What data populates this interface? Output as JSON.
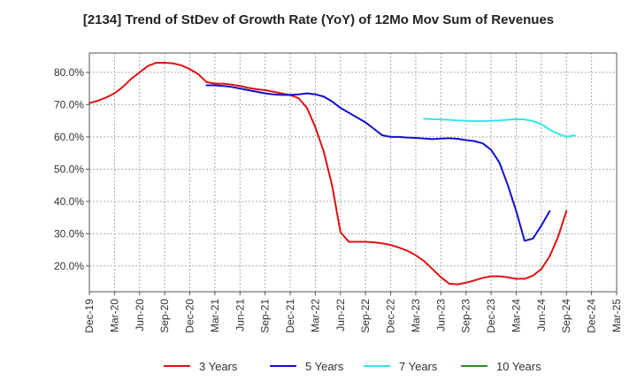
{
  "chart_data": {
    "type": "line",
    "title": "[2134]  Trend of StDev of Growth Rate (YoY) of 12Mo Mov Sum of Revenues",
    "xlabel": "",
    "ylabel": "",
    "ylim": [
      12.0,
      86.0
    ],
    "y_ticks": [
      20,
      30,
      40,
      50,
      60,
      70,
      80
    ],
    "y_tick_labels": [
      "20.0%",
      "30.0%",
      "40.0%",
      "50.0%",
      "60.0%",
      "70.0%",
      "80.0%"
    ],
    "x_range": [
      0,
      63
    ],
    "x_ticks": [
      0,
      3,
      6,
      9,
      12,
      15,
      18,
      21,
      24,
      27,
      30,
      33,
      36,
      39,
      42,
      45,
      48,
      51,
      54,
      57,
      60,
      63
    ],
    "x_tick_labels": [
      "Dec-19",
      "Mar-20",
      "Jun-20",
      "Sep-20",
      "Dec-20",
      "Mar-21",
      "Jun-21",
      "Sep-21",
      "Dec-21",
      "Mar-22",
      "Jun-22",
      "Sep-22",
      "Dec-22",
      "Mar-23",
      "Jun-23",
      "Sep-23",
      "Dec-23",
      "Mar-24",
      "Jun-24",
      "Sep-24",
      "Dec-24",
      "Mar-25"
    ],
    "grid": true,
    "legend_position": "bottom",
    "series": [
      {
        "name": "3 Years",
        "color": "#dd1111",
        "start_index": 0,
        "values": [
          70.5,
          71.2,
          72.2,
          73.5,
          75.5,
          78.0,
          80.0,
          82.0,
          83.0,
          83.0,
          82.8,
          82.2,
          81.0,
          79.5,
          77.0,
          76.5,
          76.5,
          76.2,
          75.8,
          75.2,
          74.8,
          74.5,
          74.0,
          73.5,
          73.0,
          72.0,
          69.0,
          63.0,
          55.5,
          45.0,
          30.5,
          27.5,
          27.5,
          27.5,
          27.3,
          27.0,
          26.5,
          25.7,
          24.7,
          23.3,
          21.5,
          19.0,
          16.5,
          14.5,
          14.3,
          14.8,
          15.5,
          16.3,
          16.8,
          16.8,
          16.5,
          16.0,
          16.0,
          17.0,
          19.0,
          23.0,
          29.0,
          37.0
        ]
      },
      {
        "name": "5 Years",
        "color": "#1111cc",
        "start_index": 14,
        "values": [
          76.0,
          76.0,
          75.8,
          75.5,
          75.0,
          74.5,
          74.0,
          73.5,
          73.2,
          73.0,
          73.0,
          73.2,
          73.5,
          73.2,
          72.5,
          71.0,
          69.0,
          67.5,
          66.0,
          64.5,
          62.5,
          60.5,
          60.0,
          60.0,
          59.8,
          59.7,
          59.5,
          59.3,
          59.5,
          59.6,
          59.4,
          59.0,
          58.7,
          58.0,
          56.0,
          52.0,
          45.0,
          37.0,
          27.8,
          28.5,
          32.5,
          37.0
        ]
      },
      {
        "name": "7 Years",
        "color": "#33e5e5",
        "start_index": 40,
        "values": [
          65.6,
          65.5,
          65.4,
          65.3,
          65.1,
          65.0,
          64.9,
          64.9,
          65.0,
          65.1,
          65.3,
          65.5,
          65.4,
          64.9,
          64.0,
          62.2,
          61.0,
          60.0,
          60.5
        ]
      },
      {
        "name": "10 Years",
        "color": "#2e8b2e",
        "start_index": 0,
        "values": []
      }
    ]
  }
}
